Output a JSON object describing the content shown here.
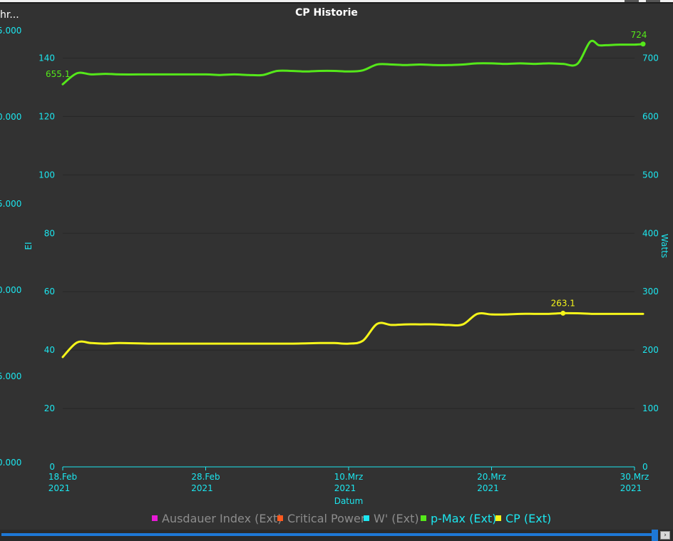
{
  "window": {
    "truncated_title": "hr..."
  },
  "chart_data": {
    "type": "line",
    "title": "CP Historie",
    "xlabel": "Datum",
    "ylabel_left": "EI",
    "ylabel_right": "Watts",
    "x_ticks": [
      {
        "date": "2021-02-18",
        "label": "18.Feb",
        "sub": "2021"
      },
      {
        "date": "2021-02-28",
        "label": "28.Feb",
        "sub": "2021"
      },
      {
        "date": "2021-03-10",
        "label": "10.Mrz",
        "sub": "2021"
      },
      {
        "date": "2021-03-20",
        "label": "20.Mrz",
        "sub": "2021"
      },
      {
        "date": "2021-03-30",
        "label": "30.Mrz",
        "sub": "2021"
      }
    ],
    "xlim": [
      "2021-02-18",
      "2021-03-30"
    ],
    "y_left": {
      "lim": [
        0,
        155
      ],
      "ticks": [
        0,
        20,
        40,
        60,
        80,
        100,
        120,
        140
      ]
    },
    "y_right": {
      "lim": [
        0,
        775
      ],
      "ticks": [
        0,
        100,
        200,
        300,
        400,
        500,
        600,
        700
      ]
    },
    "y_far_left": {
      "ticks": [
        "5.000",
        "0.000",
        "5.000",
        "0.000",
        "5.000",
        "0.000"
      ]
    },
    "grid": true,
    "legend_position": "bottom",
    "legend": [
      {
        "name": "Ausdauer Index (Ext)",
        "color": "#e81ad7",
        "dim": true
      },
      {
        "name": "Critical Power",
        "color": "#ff5a1f",
        "dim": true
      },
      {
        "name": "W' (Ext)",
        "color": "#1ce6ef",
        "dim": true
      },
      {
        "name": "p-Max (Ext)",
        "color": "#55e81a",
        "dim": false
      },
      {
        "name": "CP (Ext)",
        "color": "#f5f51a",
        "dim": false
      }
    ],
    "series": [
      {
        "name": "p-Max (Ext)",
        "axis": "right",
        "color": "#55e81a",
        "start_label": "655.1",
        "end_label": "724",
        "points": [
          [
            "2021-02-18",
            655.1
          ],
          [
            "2021-02-19",
            674
          ],
          [
            "2021-02-20",
            672
          ],
          [
            "2021-02-21",
            673
          ],
          [
            "2021-02-22",
            672
          ],
          [
            "2021-02-24",
            672
          ],
          [
            "2021-02-26",
            672
          ],
          [
            "2021-02-28",
            672
          ],
          [
            "2021-03-01",
            671
          ],
          [
            "2021-03-02",
            672
          ],
          [
            "2021-03-03",
            671
          ],
          [
            "2021-03-04",
            671
          ],
          [
            "2021-03-05",
            678
          ],
          [
            "2021-03-06",
            678
          ],
          [
            "2021-03-07",
            677
          ],
          [
            "2021-03-08",
            678
          ],
          [
            "2021-03-09",
            678
          ],
          [
            "2021-03-10",
            677
          ],
          [
            "2021-03-11",
            679
          ],
          [
            "2021-03-12",
            689
          ],
          [
            "2021-03-13",
            689
          ],
          [
            "2021-03-14",
            688
          ],
          [
            "2021-03-15",
            689
          ],
          [
            "2021-03-16",
            688
          ],
          [
            "2021-03-17",
            688
          ],
          [
            "2021-03-18",
            689
          ],
          [
            "2021-03-19",
            691
          ],
          [
            "2021-03-20",
            691
          ],
          [
            "2021-03-21",
            690
          ],
          [
            "2021-03-22",
            691
          ],
          [
            "2021-03-23",
            690
          ],
          [
            "2021-03-24",
            691
          ],
          [
            "2021-03-25",
            690
          ],
          [
            "2021-03-26",
            690
          ],
          [
            "2021-03-26.9",
            728
          ],
          [
            "2021-03-27.5",
            722
          ],
          [
            "2021-03-28",
            722
          ],
          [
            "2021-03-29",
            723
          ],
          [
            "2021-03-30",
            723
          ],
          [
            "2021-03-30.6",
            724
          ]
        ]
      },
      {
        "name": "CP (Ext)",
        "axis": "right",
        "color": "#f5f51a",
        "point_label": "263.1",
        "points": [
          [
            "2021-02-18",
            188
          ],
          [
            "2021-02-19",
            213
          ],
          [
            "2021-02-20",
            212
          ],
          [
            "2021-02-21",
            211
          ],
          [
            "2021-02-22",
            212
          ],
          [
            "2021-02-24",
            211
          ],
          [
            "2021-02-26",
            211
          ],
          [
            "2021-02-28",
            211
          ],
          [
            "2021-03-02",
            211
          ],
          [
            "2021-03-04",
            211
          ],
          [
            "2021-03-06",
            211
          ],
          [
            "2021-03-08",
            212
          ],
          [
            "2021-03-09",
            212
          ],
          [
            "2021-03-10",
            211
          ],
          [
            "2021-03-11",
            216
          ],
          [
            "2021-03-12",
            245
          ],
          [
            "2021-03-13",
            243
          ],
          [
            "2021-03-14",
            244
          ],
          [
            "2021-03-15",
            244
          ],
          [
            "2021-03-16",
            244
          ],
          [
            "2021-03-17",
            243
          ],
          [
            "2021-03-18",
            244
          ],
          [
            "2021-03-19",
            262
          ],
          [
            "2021-03-20",
            261
          ],
          [
            "2021-03-21",
            261
          ],
          [
            "2021-03-22",
            262
          ],
          [
            "2021-03-23",
            262
          ],
          [
            "2021-03-24",
            262
          ],
          [
            "2021-03-25",
            263.1
          ],
          [
            "2021-03-26",
            263
          ],
          [
            "2021-03-27",
            262
          ],
          [
            "2021-03-28",
            262
          ],
          [
            "2021-03-29",
            262
          ],
          [
            "2021-03-30.6",
            262
          ]
        ]
      }
    ]
  }
}
